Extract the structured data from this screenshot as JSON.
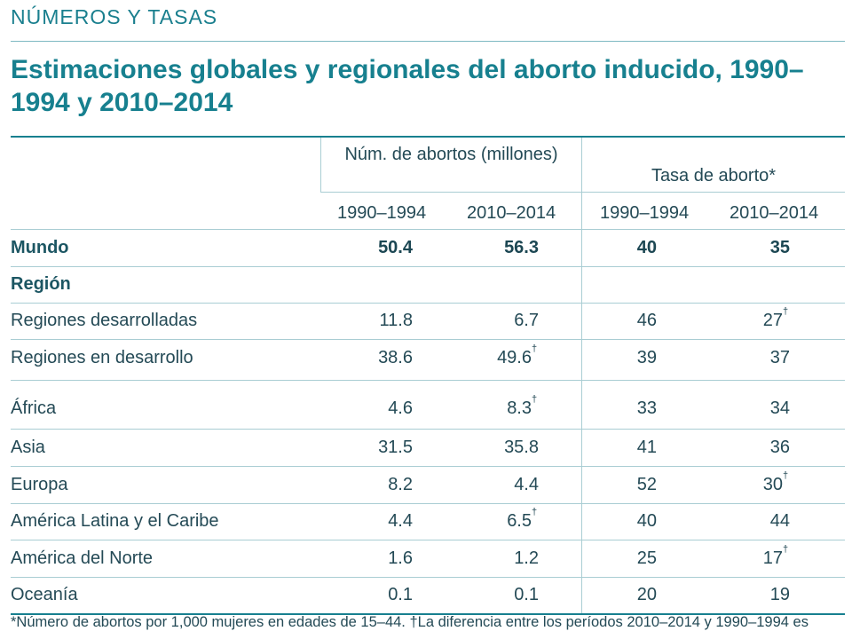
{
  "section_label": "NÚMEROS Y TASAS",
  "title": "Estimaciones globales y regionales del aborto inducido, 1990–1994 y 2010–2014",
  "table": {
    "group_headers": {
      "abortions": "Núm. de abortos (millones)",
      "rate": "Tasa de aborto*"
    },
    "columns": [
      "1990–1994",
      "2010–2014",
      "1990–1994",
      "2010–2014"
    ],
    "dagger": "†",
    "rows": [
      {
        "label": "Mundo",
        "values": [
          "50.4",
          "56.3",
          "40",
          "35"
        ]
      },
      {
        "label": "Región",
        "values": [
          "",
          "",
          "",
          ""
        ]
      },
      {
        "label": "Regiones desarrolladas",
        "values": [
          "11.8",
          "6.7",
          "46",
          "27"
        ]
      },
      {
        "label": "Regiones en desarrollo",
        "values": [
          "38.6",
          "49.6",
          "39",
          "37"
        ]
      },
      {
        "label": "África",
        "values": [
          "4.6",
          "8.3",
          "33",
          "34"
        ]
      },
      {
        "label": "Asia",
        "values": [
          "31.5",
          "35.8",
          "41",
          "36"
        ]
      },
      {
        "label": "Europa",
        "values": [
          "8.2",
          "4.4",
          "52",
          "30"
        ]
      },
      {
        "label": "América Latina y el Caribe",
        "values": [
          "4.4",
          "6.5",
          "40",
          "44"
        ]
      },
      {
        "label": "América del Norte",
        "values": [
          "1.6",
          "1.2",
          "25",
          "17"
        ]
      },
      {
        "label": "Oceanía",
        "values": [
          "0.1",
          "0.1",
          "20",
          "19"
        ]
      }
    ]
  },
  "footnote": "*Número de abortos por 1,000 mujeres en edades de 15–44. †La diferencia entre los períodos 2010–2014 y 1990–1994 es"
}
